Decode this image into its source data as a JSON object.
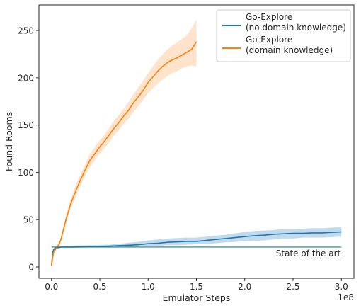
{
  "chart_data": {
    "type": "line",
    "title": "",
    "xlabel": "Emulator Steps",
    "ylabel": "Found Rooms",
    "x_offset_label": "1e8",
    "xlim": [
      -0.13,
      3.13
    ],
    "ylim": [
      -12,
      277
    ],
    "x_ticks": [
      0.0,
      0.5,
      1.0,
      1.5,
      2.0,
      2.5,
      3.0
    ],
    "x_tick_labels": [
      "0.0",
      "0.5",
      "1.0",
      "1.5",
      "2.0",
      "2.5",
      "3.0"
    ],
    "y_ticks": [
      0,
      50,
      100,
      150,
      200,
      250
    ],
    "y_tick_labels": [
      "0",
      "50",
      "100",
      "150",
      "200",
      "250"
    ],
    "grid": false,
    "legend_position": "top-right",
    "series": [
      {
        "name": "Go-Explore\n(no domain knowledge)",
        "legend_lines": [
          "Go-Explore",
          "(no domain knowledge)"
        ],
        "color": "#1f77b4",
        "band_color": "#aecde6",
        "x": [
          0.0,
          0.01,
          0.02,
          0.04,
          0.07,
          0.1,
          0.2,
          0.4,
          0.6,
          0.7,
          0.8,
          0.9,
          1.0,
          1.1,
          1.2,
          1.3,
          1.4,
          1.5,
          1.6,
          1.7,
          1.8,
          1.9,
          2.0,
          2.1,
          2.2,
          2.3,
          2.4,
          2.5,
          2.6,
          2.7,
          2.8,
          2.9,
          3.0
        ],
        "mean": [
          1,
          12,
          18,
          20,
          20.5,
          21,
          21,
          21.5,
          22,
          22.5,
          23,
          23.5,
          24.5,
          25,
          26,
          26.5,
          27,
          27,
          28,
          29,
          30,
          31,
          32,
          33,
          33.5,
          34.5,
          35,
          35.5,
          35.5,
          36,
          36,
          36.5,
          37
        ],
        "lower": [
          0,
          9,
          15,
          18,
          19.5,
          20,
          20,
          20.5,
          20.5,
          21,
          21,
          21.5,
          22,
          22.5,
          23,
          23,
          23.5,
          24,
          24,
          25,
          26,
          26.5,
          27,
          27.5,
          28,
          29,
          30,
          30,
          31,
          31,
          31,
          31.5,
          32
        ],
        "upper": [
          2,
          15,
          20,
          21.5,
          22,
          22,
          22.5,
          23,
          23.5,
          24.5,
          25.5,
          26.5,
          28,
          29,
          30,
          30.5,
          31,
          31,
          32,
          33,
          34,
          35.5,
          37,
          38,
          38.5,
          39,
          40,
          40,
          40.5,
          41,
          41,
          41.5,
          42
        ]
      },
      {
        "name": "Go-Explore\n(domain knowledge)",
        "legend_lines": [
          "Go-Explore",
          "(domain knowledge)"
        ],
        "color": "#ff7f0e",
        "band_color": "#ffd9b8",
        "x": [
          0.0,
          0.02,
          0.05,
          0.08,
          0.1,
          0.15,
          0.2,
          0.25,
          0.3,
          0.35,
          0.4,
          0.45,
          0.5,
          0.55,
          0.6,
          0.65,
          0.7,
          0.75,
          0.8,
          0.85,
          0.9,
          0.95,
          1.0,
          1.05,
          1.1,
          1.15,
          1.2,
          1.25,
          1.3,
          1.35,
          1.4,
          1.45,
          1.5
        ],
        "mean": [
          1,
          15,
          20,
          24,
          30,
          50,
          67,
          80,
          92,
          103,
          113,
          120,
          127,
          133,
          140,
          147,
          153,
          160,
          166,
          174,
          180,
          187,
          195,
          201,
          207,
          212,
          216,
          219,
          221,
          224,
          227,
          230,
          238
        ],
        "lower": [
          0,
          12,
          19,
          22,
          27,
          46,
          62,
          75,
          86,
          97,
          106,
          113,
          120,
          126,
          132,
          139,
          145,
          151,
          157,
          164,
          170,
          177,
          184,
          189,
          194,
          198,
          202,
          205,
          207,
          210,
          212,
          213,
          212
        ],
        "upper": [
          2,
          18,
          22,
          26,
          33,
          54,
          72,
          86,
          98,
          109,
          120,
          127,
          134,
          140,
          148,
          155,
          161,
          168,
          175,
          183,
          190,
          197,
          205,
          212,
          219,
          225,
          230,
          234,
          237,
          241,
          245,
          252,
          262
        ]
      }
    ],
    "reference_line": {
      "label": "State of the art",
      "y": 21,
      "x_range": [
        0.0,
        3.0
      ],
      "color": "#1a7f80"
    }
  }
}
